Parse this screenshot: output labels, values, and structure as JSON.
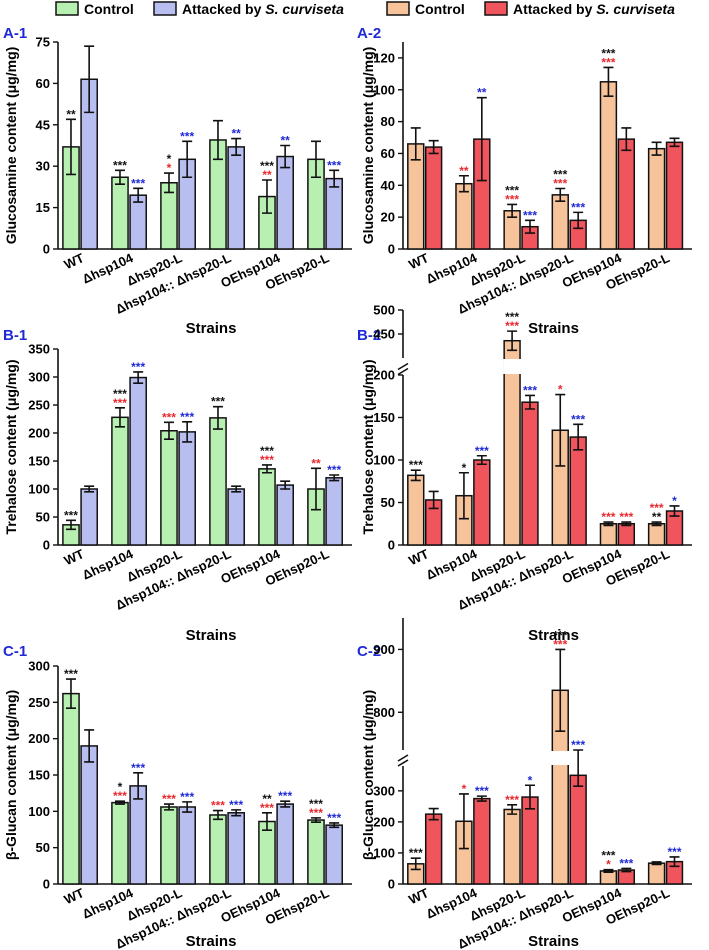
{
  "legend": {
    "left": [
      {
        "label": "Control",
        "color": "#b7f0b0"
      },
      {
        "label": "Attacked by ",
        "italic": "S. curviseta",
        "color": "#b8bff0"
      }
    ],
    "right": [
      {
        "label": "Control",
        "color": "#f7c39a"
      },
      {
        "label": "Attacked by ",
        "italic": "S. curviseta",
        "color": "#f0545c"
      }
    ]
  },
  "sig_colors": {
    "k": "#111111",
    "r": "#e8282d",
    "b": "#1f2ad6"
  },
  "strains_label": "Strains",
  "chart_data": [
    {
      "id": "A-1",
      "type": "bar",
      "ylabel": "Glucosamine content (μg/mg)",
      "ylim": [
        0,
        75
      ],
      "yticks": [
        0,
        15,
        30,
        45,
        60,
        75
      ],
      "categories": [
        "WT",
        "Δhsp104",
        "Δhsp20-L",
        "Δhsp104:: Δhsp20-L",
        "OEhsp104",
        "OEhsp20-L"
      ],
      "series": [
        {
          "name": "Control",
          "values": [
            37,
            26,
            24,
            39.5,
            19,
            32.5
          ],
          "errors": [
            10,
            2.5,
            3.5,
            7,
            6,
            6.5
          ]
        },
        {
          "name": "Attacked by S. curviseta",
          "values": [
            61.5,
            19.5,
            32.5,
            37,
            33.5,
            25.5
          ],
          "errors": [
            12,
            2.5,
            6.5,
            3,
            4,
            3
          ]
        }
      ],
      "significance": [
        [
          [
            {
              "t": "**",
              "c": "k"
            }
          ],
          [
            {
              "t": "***",
              "c": "k"
            }
          ],
          [
            {
              "t": "*",
              "c": "k"
            },
            {
              "t": "*",
              "c": "r"
            }
          ],
          [],
          [
            {
              "t": "***",
              "c": "k"
            },
            {
              "t": "**",
              "c": "r"
            }
          ],
          []
        ],
        [
          [],
          [
            {
              "t": "***",
              "c": "b"
            }
          ],
          [
            {
              "t": "***",
              "c": "b"
            }
          ],
          [
            {
              "t": "**",
              "c": "b"
            }
          ],
          [
            {
              "t": "**",
              "c": "b"
            }
          ],
          [
            {
              "t": "***",
              "c": "b"
            }
          ]
        ]
      ]
    },
    {
      "id": "A-2",
      "type": "bar",
      "ylabel": "Glucosamine content (μg/mg)",
      "ylim": [
        0,
        130
      ],
      "yticks": [
        0,
        20,
        40,
        60,
        80,
        100,
        120
      ],
      "categories": [
        "WT",
        "Δhsp104",
        "Δhsp20-L",
        "Δhsp104:: Δhsp20-L",
        "OEhsp104",
        "OEhsp20-L"
      ],
      "series": [
        {
          "name": "Control",
          "values": [
            66,
            41,
            24,
            34,
            105,
            63
          ],
          "errors": [
            10,
            5,
            4,
            4,
            9,
            4
          ]
        },
        {
          "name": "Attacked by S. curviseta",
          "values": [
            64,
            69,
            14,
            18,
            69,
            67
          ],
          "errors": [
            4,
            26,
            4,
            5,
            7,
            2.5
          ]
        }
      ],
      "significance": [
        [
          [],
          [
            {
              "t": "**",
              "c": "r"
            }
          ],
          [
            {
              "t": "***",
              "c": "k"
            },
            {
              "t": "***",
              "c": "r"
            }
          ],
          [
            {
              "t": "***",
              "c": "k"
            },
            {
              "t": "***",
              "c": "r"
            }
          ],
          [
            {
              "t": "***",
              "c": "k"
            },
            {
              "t": "***",
              "c": "r"
            }
          ],
          []
        ],
        [
          [],
          [
            {
              "t": "**",
              "c": "b"
            }
          ],
          [
            {
              "t": "***",
              "c": "b"
            }
          ],
          [
            {
              "t": "***",
              "c": "b"
            }
          ],
          [],
          []
        ]
      ]
    },
    {
      "id": "B-1",
      "type": "bar",
      "ylabel": "Trehalose content (μg/mg)",
      "ylim": [
        0,
        350
      ],
      "yticks": [
        0,
        50,
        100,
        150,
        200,
        250,
        300,
        350
      ],
      "categories": [
        "WT",
        "Δhsp104",
        "Δhsp20-L",
        "Δhsp104:: Δhsp20-L",
        "OEhsp104",
        "OEhsp20-L"
      ],
      "series": [
        {
          "name": "Control",
          "values": [
            36,
            228,
            204,
            227,
            136,
            100
          ],
          "errors": [
            8,
            17,
            15,
            20,
            7,
            37
          ]
        },
        {
          "name": "Attacked by S. curviseta",
          "values": [
            100,
            299,
            202,
            100,
            107,
            120
          ],
          "errors": [
            5,
            10,
            18,
            5,
            7,
            5
          ]
        }
      ],
      "significance": [
        [
          [
            {
              "t": "***",
              "c": "k"
            }
          ],
          [
            {
              "t": "***",
              "c": "k"
            },
            {
              "t": "***",
              "c": "r"
            }
          ],
          [
            {
              "t": "***",
              "c": "r"
            }
          ],
          [
            {
              "t": "***",
              "c": "k"
            }
          ],
          [
            {
              "t": "***",
              "c": "k"
            },
            {
              "t": "***",
              "c": "r"
            }
          ],
          [
            {
              "t": "**",
              "c": "r"
            }
          ]
        ],
        [
          [],
          [
            {
              "t": "***",
              "c": "b"
            }
          ],
          [
            {
              "t": "***",
              "c": "b"
            }
          ],
          [],
          [],
          [
            {
              "t": "***",
              "c": "b"
            }
          ]
        ]
      ]
    },
    {
      "id": "B-2",
      "type": "bar",
      "ylabel": "Trehalose content (μg/mg)",
      "axis_break": {
        "lower": [
          0,
          200
        ],
        "upper": [
          400,
          500
        ]
      },
      "yticks": [
        0,
        50,
        100,
        150,
        200,
        450,
        500
      ],
      "categories": [
        "WT",
        "Δhsp104",
        "Δhsp20-L",
        "Δhsp104:: Δhsp20-L",
        "OEhsp104",
        "OEhsp20-L"
      ],
      "series": [
        {
          "name": "Control",
          "values": [
            82,
            58,
            436,
            135,
            25,
            25
          ],
          "errors": [
            6,
            27,
            20,
            42,
            2,
            2
          ]
        },
        {
          "name": "Attacked by S. curviseta",
          "values": [
            53,
            100,
            168,
            127,
            25,
            40
          ],
          "errors": [
            10,
            5,
            8,
            15,
            2,
            6
          ]
        }
      ],
      "significance": [
        [
          [
            {
              "t": "***",
              "c": "k"
            }
          ],
          [
            {
              "t": "*",
              "c": "k"
            }
          ],
          [
            {
              "t": "***",
              "c": "k"
            },
            {
              "t": "***",
              "c": "r"
            }
          ],
          [
            {
              "t": "*",
              "c": "r"
            }
          ],
          [
            {
              "t": "***",
              "c": "r"
            }
          ],
          [
            {
              "t": "***",
              "c": "r"
            },
            {
              "t": "**",
              "c": "k"
            }
          ]
        ],
        [
          [],
          [
            {
              "t": "***",
              "c": "b"
            }
          ],
          [
            {
              "t": "***",
              "c": "b"
            }
          ],
          [
            {
              "t": "***",
              "c": "b"
            }
          ],
          [
            {
              "t": "***",
              "c": "r"
            }
          ],
          [
            {
              "t": "*",
              "c": "b"
            }
          ]
        ]
      ]
    },
    {
      "id": "C-1",
      "type": "bar",
      "ylabel": "β-Glucan content (μg/mg)",
      "ylim": [
        0,
        300
      ],
      "yticks": [
        0,
        50,
        100,
        150,
        200,
        250,
        300
      ],
      "categories": [
        "WT",
        "Δhsp104",
        "Δhsp20-L",
        "Δhsp104:: Δhsp20-L",
        "OEhsp104",
        "OEhsp20-L"
      ],
      "series": [
        {
          "name": "Control",
          "values": [
            262,
            112,
            106,
            95,
            86,
            88
          ],
          "errors": [
            20,
            2,
            4,
            6,
            12,
            3
          ]
        },
        {
          "name": "Attacked by S. curviseta",
          "values": [
            190,
            135,
            106,
            98,
            110,
            81
          ],
          "errors": [
            22,
            18,
            7,
            4,
            4,
            3
          ]
        }
      ],
      "significance": [
        [
          [
            {
              "t": "***",
              "c": "k"
            }
          ],
          [
            {
              "t": "*",
              "c": "k"
            },
            {
              "t": "***",
              "c": "r"
            }
          ],
          [
            {
              "t": "***",
              "c": "r"
            }
          ],
          [
            {
              "t": "***",
              "c": "r"
            }
          ],
          [
            {
              "t": "**",
              "c": "k"
            },
            {
              "t": "***",
              "c": "r"
            }
          ],
          [
            {
              "t": "***",
              "c": "k"
            },
            {
              "t": "***",
              "c": "r"
            }
          ]
        ],
        [
          [],
          [
            {
              "t": "***",
              "c": "b"
            }
          ],
          [
            {
              "t": "***",
              "c": "b"
            }
          ],
          [
            {
              "t": "***",
              "c": "b"
            }
          ],
          [
            {
              "t": "***",
              "c": "b"
            }
          ],
          [
            {
              "t": "***",
              "c": "b"
            }
          ]
        ]
      ]
    },
    {
      "id": "C-2",
      "type": "bar",
      "ylabel": "β-Glucan content (μg/mg)",
      "axis_break": {
        "lower": [
          0,
          380
        ],
        "upper": [
          740,
          950
        ]
      },
      "yticks": [
        0,
        100,
        200,
        300,
        800,
        900
      ],
      "categories": [
        "WT",
        "Δhsp104",
        "Δhsp20-L",
        "Δhsp104:: Δhsp20-L",
        "OEhsp104",
        "OEhsp20-L"
      ],
      "series": [
        {
          "name": "Control",
          "values": [
            65,
            202,
            240,
            835,
            42,
            67
          ],
          "errors": [
            18,
            88,
            15,
            65,
            4,
            4
          ]
        },
        {
          "name": "Attacked by S. curviseta",
          "values": [
            225,
            275,
            280,
            350,
            45,
            72
          ],
          "errors": [
            18,
            8,
            38,
            35,
            5,
            15
          ]
        }
      ],
      "significance": [
        [
          [
            {
              "t": "***",
              "c": "k"
            }
          ],
          [
            {
              "t": "*",
              "c": "r"
            }
          ],
          [
            {
              "t": "***",
              "c": "r"
            }
          ],
          [
            {
              "t": "***",
              "c": "k"
            },
            {
              "t": "***",
              "c": "r"
            }
          ],
          [
            {
              "t": "***",
              "c": "k"
            },
            {
              "t": "*",
              "c": "r"
            }
          ],
          []
        ],
        [
          [],
          [
            {
              "t": "***",
              "c": "b"
            }
          ],
          [
            {
              "t": "*",
              "c": "b"
            }
          ],
          [
            {
              "t": "***",
              "c": "b"
            }
          ],
          [
            {
              "t": "***",
              "c": "b"
            }
          ],
          [
            {
              "t": "***",
              "c": "b"
            }
          ]
        ]
      ]
    }
  ]
}
